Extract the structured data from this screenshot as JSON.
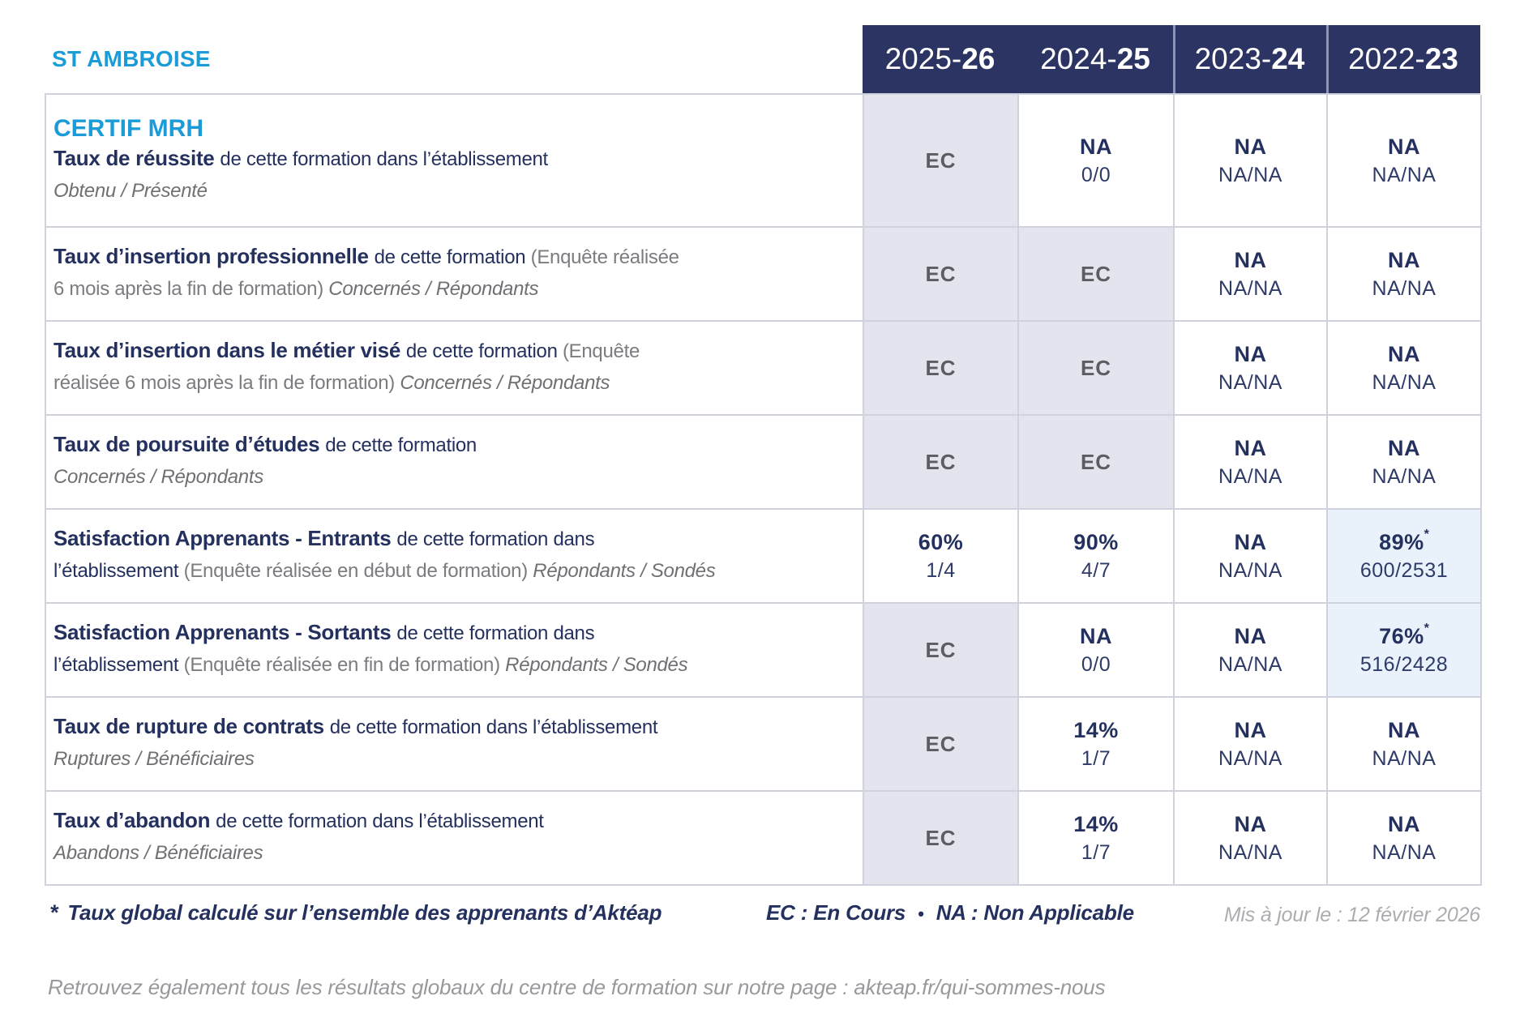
{
  "header": {
    "establishment": "ST AMBROISE"
  },
  "colors": {
    "navy_header": "#2b3462",
    "brand_blue": "#1b9cd8",
    "text_navy": "#24305e",
    "text_gray": "#7b7c80",
    "ec_cell_bg": "#e4e4ef",
    "highlight_cell_bg": "#e9f2fa",
    "grid_border": "#cfd1dc"
  },
  "table": {
    "years": [
      {
        "pre": "2025-",
        "bold": "26"
      },
      {
        "pre": "2024-",
        "bold": "25"
      },
      {
        "pre": "2023-",
        "bold": "24"
      },
      {
        "pre": "2022-",
        "bold": "23"
      }
    ],
    "rows": [
      {
        "key": "taux-reussite",
        "heading": "CERTIF MRH",
        "lines": [
          [
            {
              "t": "Taux de réussite ",
              "s": "title"
            },
            {
              "t": "de cette formation dans l’établissement",
              "s": "desc"
            }
          ],
          [
            {
              "t": "Obtenu / Présenté",
              "s": "italic"
            }
          ]
        ],
        "cells": [
          {
            "main": "EC",
            "style": "ec"
          },
          {
            "main": "NA",
            "sub": "0/0",
            "style": "plain"
          },
          {
            "main": "NA",
            "sub": "NA/NA",
            "style": "plain"
          },
          {
            "main": "NA",
            "sub": "NA/NA",
            "style": "plain"
          }
        ]
      },
      {
        "key": "insertion-professionnelle",
        "lines": [
          [
            {
              "t": "Taux d’insertion professionnelle ",
              "s": "title"
            },
            {
              "t": "de cette formation ",
              "s": "desc"
            },
            {
              "t": "(Enquête réalisée",
              "s": "note"
            }
          ],
          [
            {
              "t": "6 mois après la fin de formation) ",
              "s": "note"
            },
            {
              "t": "Concernés / Répondants",
              "s": "italic"
            }
          ]
        ],
        "cells": [
          {
            "main": "EC",
            "style": "ec"
          },
          {
            "main": "EC",
            "style": "ec"
          },
          {
            "main": "NA",
            "sub": "NA/NA",
            "style": "plain"
          },
          {
            "main": "NA",
            "sub": "NA/NA",
            "style": "plain"
          }
        ]
      },
      {
        "key": "insertion-metier-vise",
        "lines": [
          [
            {
              "t": "Taux d’insertion dans le métier visé ",
              "s": "title"
            },
            {
              "t": "de cette formation ",
              "s": "desc"
            },
            {
              "t": "(Enquête",
              "s": "note"
            }
          ],
          [
            {
              "t": "réalisée 6 mois après la fin de formation) ",
              "s": "note"
            },
            {
              "t": "Concernés / Répondants",
              "s": "italic"
            }
          ]
        ],
        "cells": [
          {
            "main": "EC",
            "style": "ec"
          },
          {
            "main": "EC",
            "style": "ec"
          },
          {
            "main": "NA",
            "sub": "NA/NA",
            "style": "plain"
          },
          {
            "main": "NA",
            "sub": "NA/NA",
            "style": "plain"
          }
        ]
      },
      {
        "key": "poursuite-etudes",
        "lines": [
          [
            {
              "t": "Taux de poursuite d’études ",
              "s": "title"
            },
            {
              "t": "de cette formation",
              "s": "desc"
            }
          ],
          [
            {
              "t": "Concernés / Répondants",
              "s": "italic"
            }
          ]
        ],
        "cells": [
          {
            "main": "EC",
            "style": "ec"
          },
          {
            "main": "EC",
            "style": "ec"
          },
          {
            "main": "NA",
            "sub": "NA/NA",
            "style": "plain"
          },
          {
            "main": "NA",
            "sub": "NA/NA",
            "style": "plain"
          }
        ]
      },
      {
        "key": "satisfaction-entrants",
        "lines": [
          [
            {
              "t": "Satisfaction Apprenants - Entrants ",
              "s": "title"
            },
            {
              "t": "de cette formation dans",
              "s": "desc"
            }
          ],
          [
            {
              "t": "l’établissement ",
              "s": "desc"
            },
            {
              "t": "(Enquête réalisée en début de formation) ",
              "s": "note"
            },
            {
              "t": "Répondants / Sondés",
              "s": "italic"
            }
          ]
        ],
        "cells": [
          {
            "main": "60%",
            "sub": "1/4",
            "style": "plain"
          },
          {
            "main": "90%",
            "sub": "4/7",
            "style": "plain"
          },
          {
            "main": "NA",
            "sub": "NA/NA",
            "style": "plain"
          },
          {
            "main": "89%",
            "star": true,
            "sub": "600/2531",
            "style": "highlight"
          }
        ]
      },
      {
        "key": "satisfaction-sortants",
        "lines": [
          [
            {
              "t": "Satisfaction Apprenants - Sortants ",
              "s": "title"
            },
            {
              "t": "de cette formation dans",
              "s": "desc"
            }
          ],
          [
            {
              "t": "l’établissement ",
              "s": "desc"
            },
            {
              "t": "(Enquête réalisée en fin de formation) ",
              "s": "note"
            },
            {
              "t": "Répondants / Sondés",
              "s": "italic"
            }
          ]
        ],
        "cells": [
          {
            "main": "EC",
            "style": "ec"
          },
          {
            "main": "NA",
            "sub": "0/0",
            "style": "plain"
          },
          {
            "main": "NA",
            "sub": "NA/NA",
            "style": "plain"
          },
          {
            "main": "76%",
            "star": true,
            "sub": "516/2428",
            "style": "highlight"
          }
        ]
      },
      {
        "key": "rupture-contrats",
        "lines": [
          [
            {
              "t": "Taux de rupture de contrats ",
              "s": "title"
            },
            {
              "t": "de cette formation dans l’établissement",
              "s": "desc"
            }
          ],
          [
            {
              "t": "Ruptures / Bénéficiaires",
              "s": "italic"
            }
          ]
        ],
        "cells": [
          {
            "main": "EC",
            "style": "ec"
          },
          {
            "main": "14%",
            "sub": "1/7",
            "style": "plain"
          },
          {
            "main": "NA",
            "sub": "NA/NA",
            "style": "plain"
          },
          {
            "main": "NA",
            "sub": "NA/NA",
            "style": "plain"
          }
        ]
      },
      {
        "key": "abandon",
        "lines": [
          [
            {
              "t": "Taux d’abandon ",
              "s": "title"
            },
            {
              "t": "de cette formation dans l’établissement",
              "s": "desc"
            }
          ],
          [
            {
              "t": "Abandons / Bénéficiaires",
              "s": "italic"
            }
          ]
        ],
        "cells": [
          {
            "main": "EC",
            "style": "ec"
          },
          {
            "main": "14%",
            "sub": "1/7",
            "style": "plain"
          },
          {
            "main": "NA",
            "sub": "NA/NA",
            "style": "plain"
          },
          {
            "main": "NA",
            "sub": "NA/NA",
            "style": "plain"
          }
        ]
      }
    ]
  },
  "footer": {
    "star": "*",
    "footnote": "Taux global calculé sur l’ensemble des apprenants d’Aktéap",
    "legend_ec": "EC : En Cours",
    "bullet": "•",
    "legend_na": "NA : Non Applicable",
    "updated": "Mis à jour le : 12 février 2026",
    "bottom_note": "Retrouvez également tous les résultats globaux du centre de formation sur notre page : akteap.fr/qui-sommes-nous"
  }
}
